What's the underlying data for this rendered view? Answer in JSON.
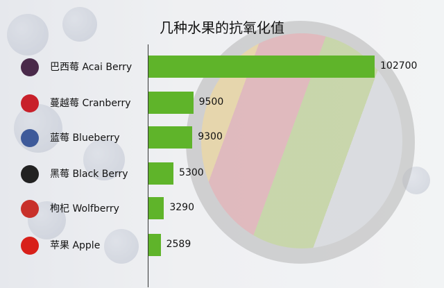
{
  "chart_data": {
    "type": "bar",
    "orientation": "horizontal",
    "title": "几种水果的抗氧化值",
    "categories": [
      "巴西莓 Acai Berry",
      "蔓越莓 Cranberry",
      "蓝莓 Blueberry",
      "黑莓 Black Berry",
      "枸杞 Wolfberry",
      "苹果 Apple"
    ],
    "values": [
      102700,
      9500,
      9300,
      5300,
      3290,
      2589
    ],
    "data_labels": [
      "102700",
      "9500",
      "9300",
      "5300",
      "3290",
      "2589"
    ],
    "icons": [
      "acai-berry-icon",
      "cranberry-icon",
      "blueberry-icon",
      "blackberry-icon",
      "wolfberry-icon",
      "apple-icon"
    ],
    "icon_colors": [
      "#4a2a4a",
      "#c8202a",
      "#3e5a9a",
      "#222222",
      "#c8302a",
      "#d8201a"
    ],
    "bar_color": "#5fb42a",
    "grid": false,
    "legend": "none"
  }
}
